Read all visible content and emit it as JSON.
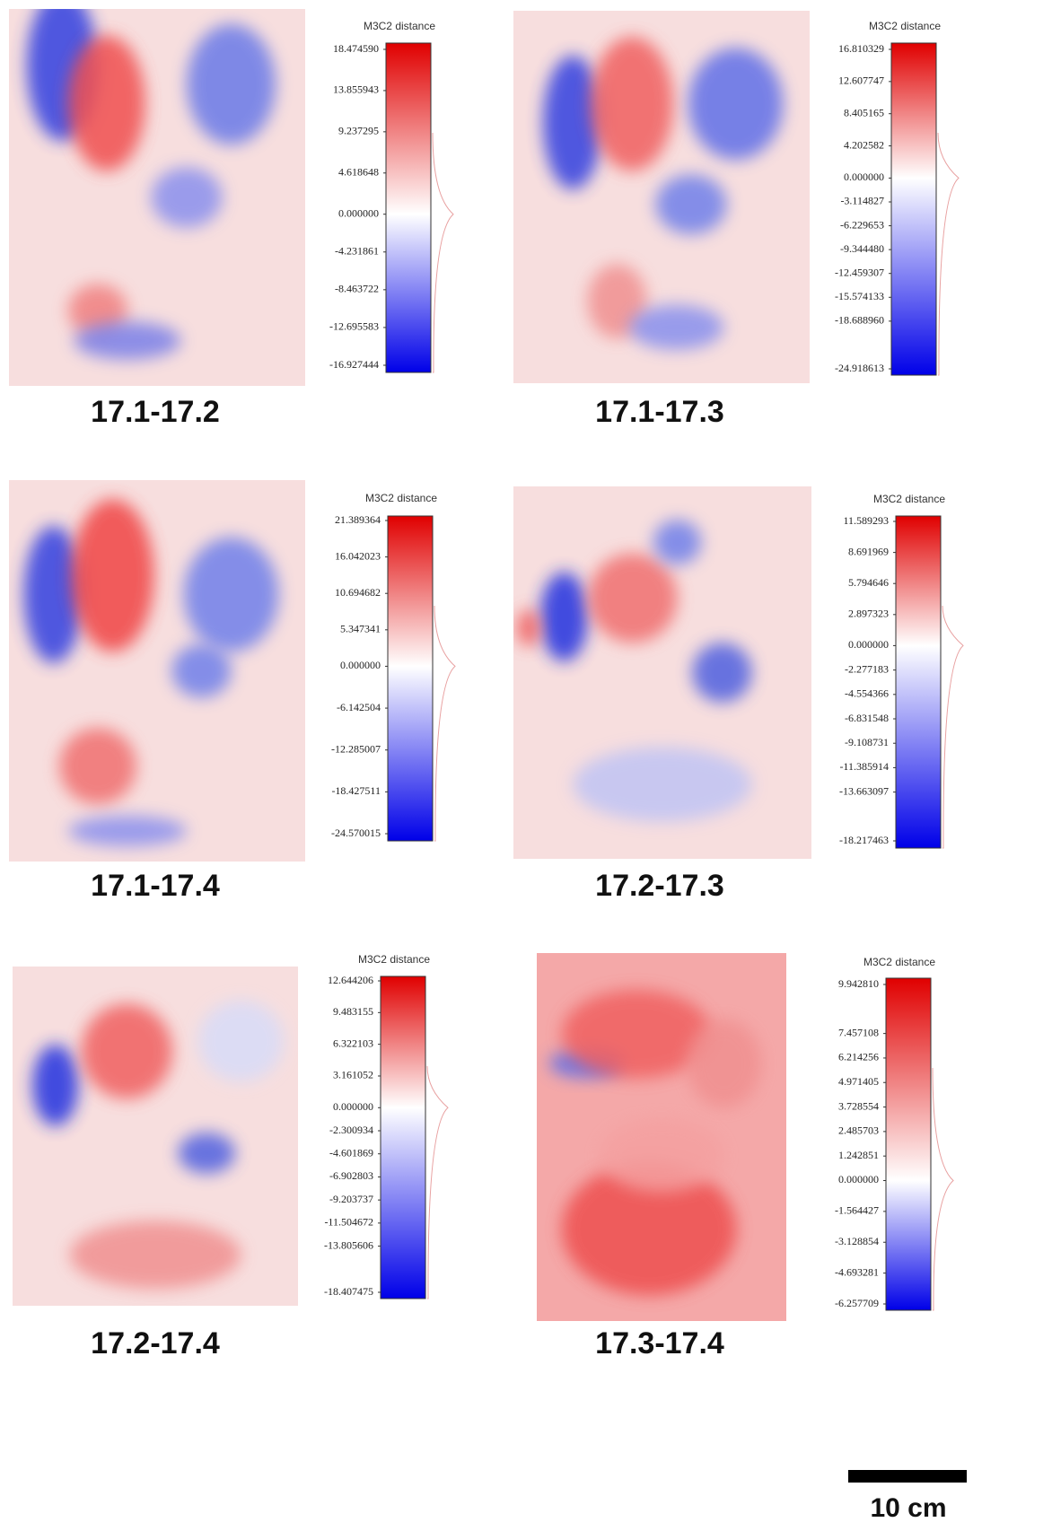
{
  "panels": [
    {
      "label": "17.1-17.2",
      "colorbar": {
        "title": "M3C2 distance",
        "ticks": [
          {
            "value": 18.47459,
            "label": "18.474590"
          },
          {
            "value": 13.855943,
            "label": "13.855943"
          },
          {
            "value": 9.237295,
            "label": "9.237295"
          },
          {
            "value": 4.618648,
            "label": "4.618648"
          },
          {
            "value": 0,
            "label": "0.000000"
          },
          {
            "value": -4.231861,
            "label": "-4.231861"
          },
          {
            "value": -8.463722,
            "label": "-8.463722"
          },
          {
            "value": -12.695583,
            "label": "-12.695583"
          },
          {
            "value": -16.927444,
            "label": "-16.927444"
          }
        ]
      }
    },
    {
      "label": "17.1-17.3",
      "colorbar": {
        "title": "M3C2 distance",
        "ticks": [
          {
            "value": 16.810329,
            "label": "16.810329"
          },
          {
            "value": 12.607747,
            "label": "12.607747"
          },
          {
            "value": 8.405165,
            "label": "8.405165"
          },
          {
            "value": 4.202582,
            "label": "4.202582"
          },
          {
            "value": 0,
            "label": "0.000000"
          },
          {
            "value": -3.114827,
            "label": "-3.114827"
          },
          {
            "value": -6.229653,
            "label": "-6.229653"
          },
          {
            "value": -9.34448,
            "label": "-9.344480"
          },
          {
            "value": -12.459307,
            "label": "-12.459307"
          },
          {
            "value": -15.574133,
            "label": "-15.574133"
          },
          {
            "value": -18.68896,
            "label": "-18.688960"
          },
          {
            "value": -24.918613,
            "label": "-24.918613"
          }
        ]
      }
    },
    {
      "label": "17.1-17.4",
      "colorbar": {
        "title": "M3C2 distance",
        "ticks": [
          {
            "value": 21.389364,
            "label": "21.389364"
          },
          {
            "value": 16.042023,
            "label": "16.042023"
          },
          {
            "value": 10.694682,
            "label": "10.694682"
          },
          {
            "value": 5.347341,
            "label": "5.347341"
          },
          {
            "value": 0,
            "label": "0.000000"
          },
          {
            "value": -6.142504,
            "label": "-6.142504"
          },
          {
            "value": -12.285007,
            "label": "-12.285007"
          },
          {
            "value": -18.427511,
            "label": "-18.427511"
          },
          {
            "value": -24.570015,
            "label": "-24.570015"
          }
        ]
      }
    },
    {
      "label": "17.2-17.3",
      "colorbar": {
        "title": "M3C2 distance",
        "ticks": [
          {
            "value": 11.589293,
            "label": "11.589293"
          },
          {
            "value": 8.691969,
            "label": "8.691969"
          },
          {
            "value": 5.794646,
            "label": "5.794646"
          },
          {
            "value": 2.897323,
            "label": "2.897323"
          },
          {
            "value": 0,
            "label": "0.000000"
          },
          {
            "value": -2.277183,
            "label": "-2.277183"
          },
          {
            "value": -4.554366,
            "label": "-4.554366"
          },
          {
            "value": -6.831548,
            "label": "-6.831548"
          },
          {
            "value": -9.108731,
            "label": "-9.108731"
          },
          {
            "value": -11.385914,
            "label": "-11.385914"
          },
          {
            "value": -13.663097,
            "label": "-13.663097"
          },
          {
            "value": -18.217463,
            "label": "-18.217463"
          }
        ]
      }
    },
    {
      "label": "17.2-17.4",
      "colorbar": {
        "title": "M3C2 distance",
        "ticks": [
          {
            "value": 12.644206,
            "label": "12.644206"
          },
          {
            "value": 9.483155,
            "label": "9.483155"
          },
          {
            "value": 6.322103,
            "label": "6.322103"
          },
          {
            "value": 3.161052,
            "label": "3.161052"
          },
          {
            "value": 0,
            "label": "0.000000"
          },
          {
            "value": -2.300934,
            "label": "-2.300934"
          },
          {
            "value": -4.601869,
            "label": "-4.601869"
          },
          {
            "value": -6.902803,
            "label": "-6.902803"
          },
          {
            "value": -9.203737,
            "label": "-9.203737"
          },
          {
            "value": -11.504672,
            "label": "-11.504672"
          },
          {
            "value": -13.805606,
            "label": "-13.805606"
          },
          {
            "value": -18.407475,
            "label": "-18.407475"
          }
        ]
      }
    },
    {
      "label": "17.3-17.4",
      "colorbar": {
        "title": "M3C2 distance",
        "ticks": [
          {
            "value": 9.94281,
            "label": "9.942810"
          },
          {
            "value": 7.457108,
            "label": "7.457108"
          },
          {
            "value": 6.214256,
            "label": "6.214256"
          },
          {
            "value": 4.971405,
            "label": "4.971405"
          },
          {
            "value": 3.728554,
            "label": "3.728554"
          },
          {
            "value": 2.485703,
            "label": "2.485703"
          },
          {
            "value": 1.242851,
            "label": "1.242851"
          },
          {
            "value": 0,
            "label": "0.000000"
          },
          {
            "value": -1.564427,
            "label": "-1.564427"
          },
          {
            "value": -3.128854,
            "label": "-3.128854"
          },
          {
            "value": -4.693281,
            "label": "-4.693281"
          },
          {
            "value": -6.257709,
            "label": "-6.257709"
          }
        ]
      }
    }
  ],
  "scale_bar": {
    "label": "10 cm"
  }
}
